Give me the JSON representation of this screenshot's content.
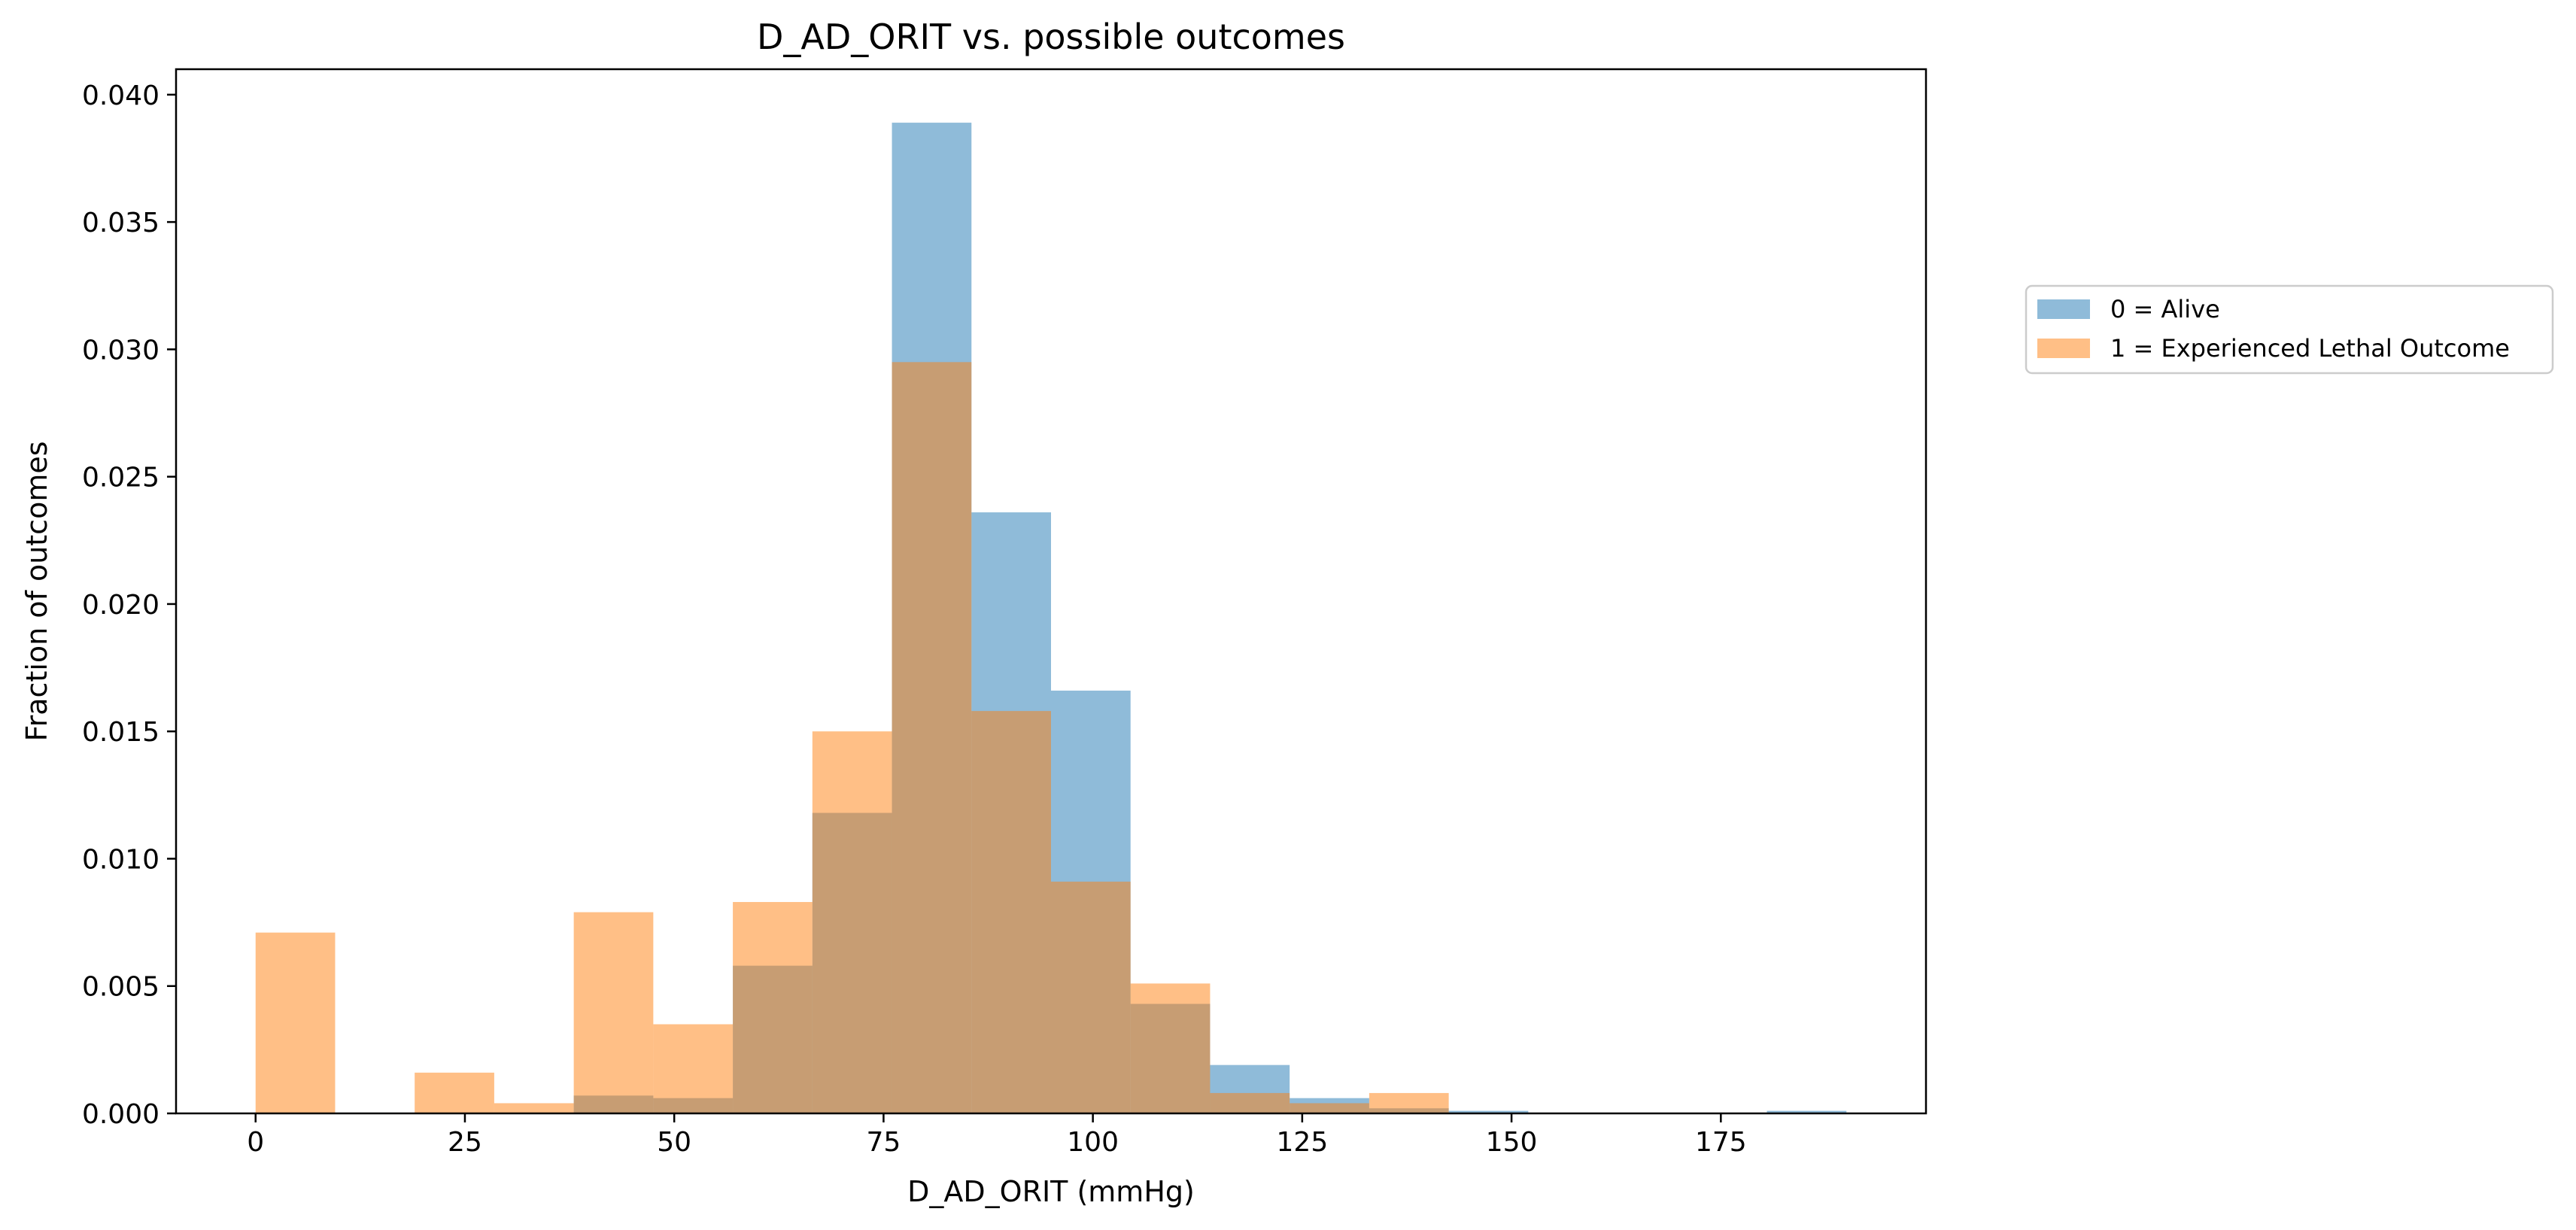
{
  "chart_data": {
    "type": "bar",
    "title": "D_AD_ORIT vs. possible outcomes",
    "xlabel": "D_AD_ORIT (mmHg)",
    "ylabel": "Fraction of outcomes",
    "xlim": [
      -9.5,
      199.5
    ],
    "ylim": [
      0,
      0.041
    ],
    "xticks": [
      0,
      25,
      50,
      75,
      100,
      125,
      150,
      175
    ],
    "yticks": [
      0.0,
      0.005,
      0.01,
      0.015,
      0.02,
      0.025,
      0.03,
      0.035,
      0.04
    ],
    "xtick_labels": [
      "0",
      "25",
      "50",
      "75",
      "100",
      "125",
      "150",
      "175"
    ],
    "ytick_labels": [
      "0.000",
      "0.005",
      "0.010",
      "0.015",
      "0.020",
      "0.025",
      "0.030",
      "0.035",
      "0.040"
    ],
    "bin_edges": [
      0,
      9.5,
      19,
      28.5,
      38,
      47.5,
      57,
      66.5,
      76,
      85.5,
      95,
      104.5,
      114,
      123.5,
      133,
      142.5,
      152,
      161.5,
      171,
      180.5,
      190
    ],
    "grid": false,
    "legend_position": "right-outside-top",
    "series": [
      {
        "name": "0 = Alive",
        "color": "#1f77b4",
        "values": [
          0.0,
          0.0,
          0.0,
          0.0,
          0.0007,
          0.0006,
          0.0058,
          0.0118,
          0.0389,
          0.0236,
          0.0166,
          0.0043,
          0.0019,
          0.0006,
          0.0002,
          0.0001,
          0.0,
          0.0,
          0.0,
          0.0001
        ]
      },
      {
        "name": "1 = Experienced Lethal Outcome",
        "color": "#ff7f0e",
        "values": [
          0.0071,
          0.0,
          0.0016,
          0.0004,
          0.0079,
          0.0035,
          0.0083,
          0.015,
          0.0295,
          0.0158,
          0.0091,
          0.0051,
          0.0008,
          0.0004,
          0.0008,
          0.0,
          0.0,
          0.0,
          0.0,
          0.0
        ]
      }
    ]
  }
}
